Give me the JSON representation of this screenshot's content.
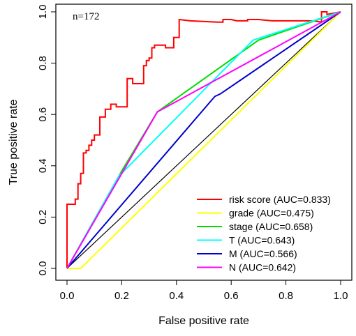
{
  "chart_data": {
    "type": "line",
    "xlabel": "False positive rate",
    "ylabel": "True positive rate",
    "xlim": [
      0,
      1
    ],
    "ylim": [
      0,
      1
    ],
    "x_ticks": [
      "0.0",
      "0.2",
      "0.4",
      "0.6",
      "0.8",
      "1.0"
    ],
    "y_ticks": [
      "0.0",
      "0.2",
      "0.4",
      "0.6",
      "0.8",
      "1.0"
    ],
    "annotation": "n=172",
    "legend_position": "bottom-right",
    "grid": false,
    "reference_line": {
      "x": [
        0,
        1
      ],
      "y": [
        0,
        1
      ],
      "color": "#000000"
    },
    "series": [
      {
        "name": "risk score (AUC=0.833)",
        "color": "#ff0000",
        "x": [
          0,
          0,
          0.03,
          0.03,
          0.04,
          0.04,
          0.05,
          0.05,
          0.06,
          0.06,
          0.07,
          0.07,
          0.08,
          0.08,
          0.09,
          0.09,
          0.1,
          0.1,
          0.12,
          0.12,
          0.14,
          0.14,
          0.16,
          0.16,
          0.18,
          0.18,
          0.22,
          0.22,
          0.24,
          0.24,
          0.28,
          0.28,
          0.29,
          0.29,
          0.3,
          0.3,
          0.31,
          0.31,
          0.32,
          0.32,
          0.36,
          0.36,
          0.39,
          0.39,
          0.41,
          0.41,
          0.45,
          0.55,
          0.57,
          0.57,
          0.6,
          0.62,
          0.66,
          0.66,
          0.7,
          0.75,
          0.9,
          0.93,
          0.93,
          0.95,
          0.95,
          1.0
        ],
        "y": [
          0,
          0.25,
          0.25,
          0.27,
          0.27,
          0.33,
          0.33,
          0.37,
          0.37,
          0.45,
          0.45,
          0.46,
          0.46,
          0.48,
          0.48,
          0.5,
          0.5,
          0.52,
          0.52,
          0.59,
          0.59,
          0.62,
          0.62,
          0.64,
          0.64,
          0.63,
          0.63,
          0.74,
          0.74,
          0.72,
          0.72,
          0.79,
          0.79,
          0.81,
          0.81,
          0.82,
          0.82,
          0.86,
          0.86,
          0.87,
          0.87,
          0.86,
          0.86,
          0.9,
          0.9,
          0.97,
          0.965,
          0.96,
          0.96,
          0.97,
          0.97,
          0.965,
          0.965,
          0.97,
          0.97,
          0.965,
          0.965,
          0.96,
          1.0,
          1.0,
          0.99,
          1.0
        ]
      },
      {
        "name": "grade (AUC=0.475)",
        "color": "#ffff00",
        "x": [
          0,
          0.05,
          1.0
        ],
        "y": [
          0,
          0,
          1.0
        ]
      },
      {
        "name": "stage (AUC=0.658)",
        "color": "#00dd00",
        "x": [
          0,
          0.2,
          0.33,
          0.7,
          1.0
        ],
        "y": [
          0,
          0.38,
          0.61,
          0.89,
          1.0
        ]
      },
      {
        "name": "T (AUC=0.643)",
        "color": "#00ffff",
        "x": [
          0,
          0.19,
          0.68,
          1.0
        ],
        "y": [
          0,
          0.36,
          0.89,
          1.0
        ]
      },
      {
        "name": "M (AUC=0.566)",
        "color": "#0000cc",
        "x": [
          0,
          0.54,
          0.56,
          1.0
        ],
        "y": [
          0,
          0.67,
          0.68,
          1.0
        ]
      },
      {
        "name": "N (AUC=0.642)",
        "color": "#ff00ff",
        "x": [
          0,
          0.33,
          1.0
        ],
        "y": [
          0,
          0.61,
          1.0
        ]
      }
    ]
  }
}
